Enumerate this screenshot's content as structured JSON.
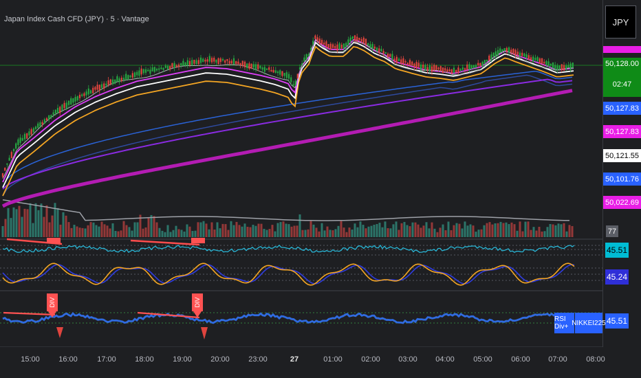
{
  "header": {
    "title": "Japan Index Cash CFD (JPY) · 5 · Vantage"
  },
  "currency_selector": {
    "label": "JPY"
  },
  "price_labels": [
    {
      "text": "50,128.00",
      "bg": "#0f8b17",
      "fg": "#ffffff"
    },
    {
      "text": "02:47",
      "bg": "#0f8b17",
      "fg": "#ffffff"
    },
    {
      "text": "50,127.83",
      "bg": "#2962ff",
      "fg": "#ffffff"
    },
    {
      "text": "50,127.83",
      "bg": "#e91ee6",
      "fg": "#ffffff"
    },
    {
      "text": "50,121.55",
      "bg": "#ffffff",
      "fg": "#000000"
    },
    {
      "text": "50,101.76",
      "bg": "#2962ff",
      "fg": "#ffffff"
    },
    {
      "text": "50,022.69",
      "bg": "#e91ee6",
      "fg": "#ffffff"
    }
  ],
  "volume_label": {
    "text": "77"
  },
  "indicator_labels": [
    {
      "text": "45.51",
      "bg": "#00bcd4",
      "fg": "#000000"
    },
    {
      "text": "45.24",
      "bg": "#2f2fd8",
      "fg": "#ffffff"
    },
    {
      "text": "45.51",
      "bg": "#2962ff",
      "fg": "#ffffff"
    }
  ],
  "indicator_tags": [
    {
      "text": "RSI Div+",
      "bg": "#2962ff"
    },
    {
      "text": "NIKKEI225",
      "bg": "#2962ff"
    }
  ],
  "div_markers": [
    "DIV",
    "DIV"
  ],
  "time_axis": [
    {
      "label": "15:00",
      "bold": false
    },
    {
      "label": "16:00",
      "bold": false
    },
    {
      "label": "17:00",
      "bold": false
    },
    {
      "label": "18:00",
      "bold": false
    },
    {
      "label": "19:00",
      "bold": false
    },
    {
      "label": "20:00",
      "bold": false
    },
    {
      "label": "23:00",
      "bold": false
    },
    {
      "label": "27",
      "bold": true
    },
    {
      "label": "01:00",
      "bold": false
    },
    {
      "label": "02:00",
      "bold": false
    },
    {
      "label": "03:00",
      "bold": false
    },
    {
      "label": "04:00",
      "bold": false
    },
    {
      "label": "05:00",
      "bold": false
    },
    {
      "label": "06:00",
      "bold": false
    },
    {
      "label": "07:00",
      "bold": false
    },
    {
      "label": "08:00",
      "bold": false
    }
  ],
  "colors": {
    "background": "#1e1f22",
    "bull": "#26a641",
    "bear": "#e0443e",
    "ma_white": "#ffffff",
    "ma_pink": "#e040fb",
    "ma_orange": "#f5a623",
    "ma_blue": "#2e4a9e",
    "ma_purple": "#b31cb3",
    "rsi": "#29b6d6",
    "stoch_k": "#f5a623",
    "stoch_d": "#2f3ce0"
  }
}
